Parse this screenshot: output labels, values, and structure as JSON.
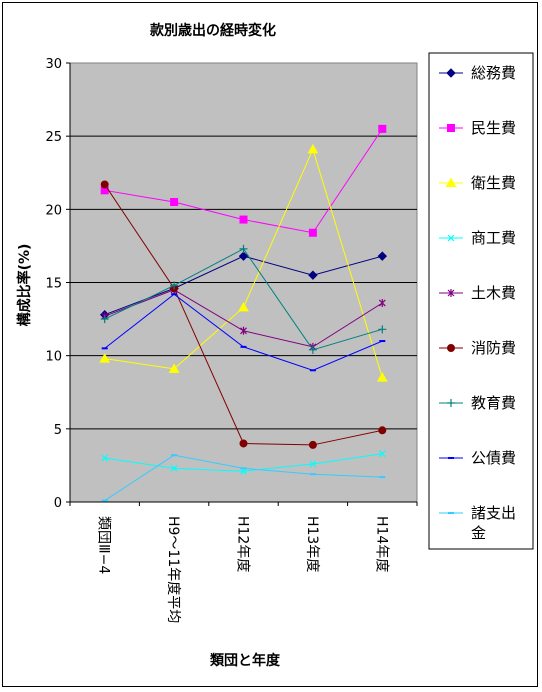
{
  "chart_data": {
    "type": "line",
    "title": "款別歳出の経時変化",
    "xlabel": "類団と年度",
    "ylabel": "構成比率(%)",
    "ylim": [
      0,
      30
    ],
    "yticks": [
      0,
      5,
      10,
      15,
      20,
      25,
      30
    ],
    "grid": true,
    "legend": "right",
    "categories": [
      "類団Ⅲ−4",
      "H9〜11年度平均",
      "H12年度",
      "H13年度",
      "H14年度"
    ],
    "series": [
      {
        "name": "総務費",
        "color": "#000080",
        "marker": "diamond",
        "values": [
          12.8,
          14.6,
          16.8,
          15.5,
          16.8
        ]
      },
      {
        "name": "民生費",
        "color": "#ff00ff",
        "marker": "square",
        "values": [
          21.3,
          20.5,
          19.3,
          18.4,
          25.5
        ]
      },
      {
        "name": "衛生費",
        "color": "#ffff00",
        "marker": "triangle",
        "values": [
          9.8,
          9.1,
          13.3,
          24.1,
          8.5
        ]
      },
      {
        "name": "商工費",
        "color": "#00ffff",
        "marker": "x",
        "values": [
          3.0,
          2.3,
          2.1,
          2.6,
          3.3
        ]
      },
      {
        "name": "土木費",
        "color": "#800080",
        "marker": "star",
        "values": [
          12.7,
          14.5,
          11.7,
          10.6,
          13.6
        ]
      },
      {
        "name": "消防費",
        "color": "#800000",
        "marker": "circle",
        "values": [
          21.7,
          14.6,
          4.0,
          3.9,
          4.9
        ]
      },
      {
        "name": "教育費",
        "color": "#008080",
        "marker": "plus",
        "values": [
          12.5,
          14.8,
          17.3,
          10.4,
          11.8
        ]
      },
      {
        "name": "公債費",
        "color": "#0000ff",
        "marker": "dash",
        "values": [
          10.5,
          14.2,
          10.6,
          9.0,
          11.0
        ]
      },
      {
        "name": "諸支出金",
        "color": "#33ccff",
        "marker": "dash",
        "values": [
          0.1,
          3.2,
          2.3,
          1.9,
          1.7
        ]
      }
    ]
  }
}
